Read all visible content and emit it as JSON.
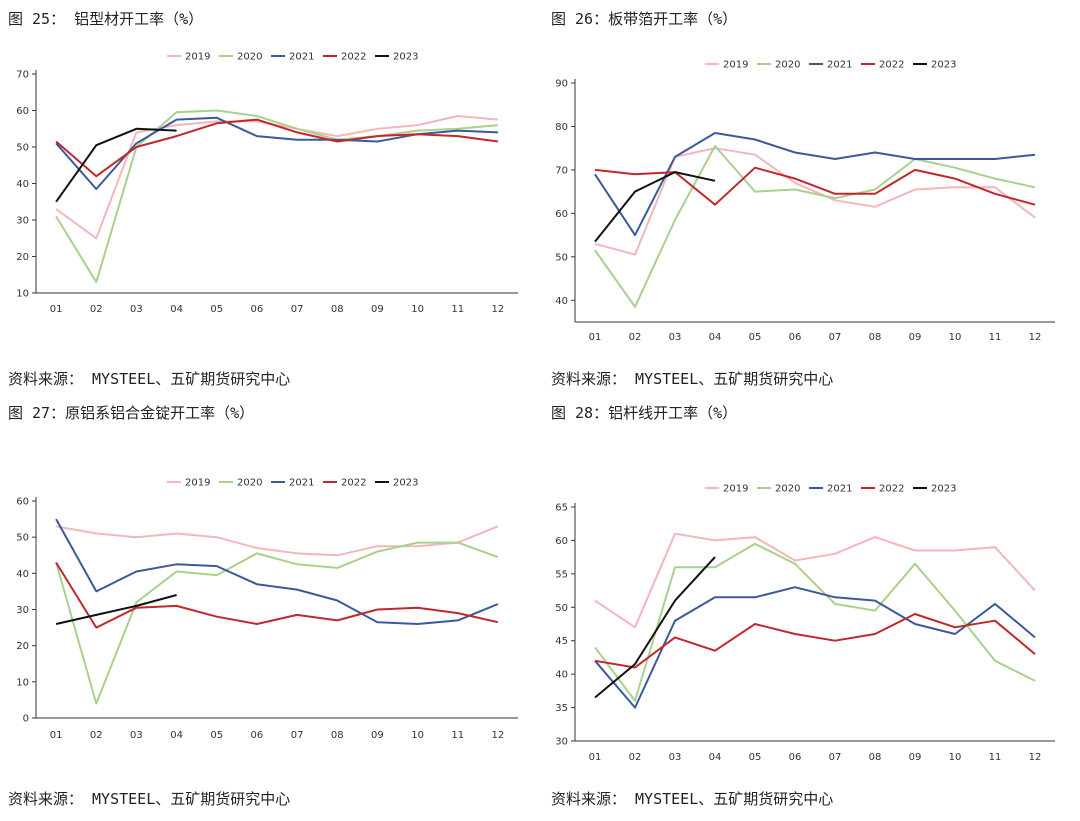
{
  "page": {
    "source_label": "资料来源： MYSTEEL、五矿期货研究中心"
  },
  "chart_data": [
    {
      "type": "line",
      "title": "图 25： 铝型材开工率（%）",
      "categories": [
        "01",
        "02",
        "03",
        "04",
        "05",
        "06",
        "07",
        "08",
        "09",
        "10",
        "11",
        "12"
      ],
      "ylim": [
        10,
        70
      ],
      "yticks": [
        10,
        20,
        30,
        40,
        50,
        60,
        70
      ],
      "legend": "top-center",
      "series": [
        {
          "name": "2019",
          "color": "#f4b6b8",
          "values": [
            33,
            25,
            54,
            56,
            57,
            57,
            55,
            53,
            55,
            56,
            58.5,
            57.5
          ]
        },
        {
          "name": "2020",
          "color": "#a9d18e",
          "values": [
            31,
            13,
            50,
            59.5,
            60,
            58.5,
            55,
            52,
            53,
            54.5,
            55,
            56
          ]
        },
        {
          "name": "2021",
          "color": "#3c5a9a",
          "values": [
            51,
            38.5,
            51,
            57.5,
            58,
            53,
            52,
            52,
            51.5,
            53.5,
            54.5,
            54
          ]
        },
        {
          "name": "2022",
          "color": "#c0282e",
          "values": [
            51.5,
            42,
            50,
            53,
            56.5,
            57.5,
            54,
            51.5,
            53,
            53.5,
            53,
            51.5
          ]
        },
        {
          "name": "2023",
          "color": "#111111",
          "values": [
            35,
            50.5,
            55,
            54.5,
            null,
            null,
            null,
            null,
            null,
            null,
            null,
            null
          ]
        }
      ]
    },
    {
      "type": "line",
      "title": "图 26：板带箔开工率（%）",
      "categories": [
        "01",
        "02",
        "03",
        "04",
        "05",
        "06",
        "07",
        "08",
        "09",
        "10",
        "11",
        "12"
      ],
      "ylim": [
        35,
        90
      ],
      "yticks": [
        40,
        50,
        60,
        70,
        80,
        90
      ],
      "legend": "top-center",
      "series": [
        {
          "name": "2019",
          "color": "#f4b6b8",
          "values": [
            53,
            50.5,
            73,
            75,
            73.5,
            67,
            63,
            61.5,
            65.5,
            66,
            66,
            59
          ]
        },
        {
          "name": "2020",
          "color": "#a9d18e",
          "values": [
            51.5,
            38.5,
            58.5,
            75.5,
            65,
            65.5,
            63.5,
            65.5,
            72.5,
            70.5,
            68,
            66
          ]
        },
        {
          "name": "2021",
          "color": "#3c5a9a",
          "values": [
            69,
            55,
            73,
            78.5,
            77,
            74,
            72.5,
            74,
            72.5,
            72.5,
            72.5,
            73.5
          ]
        },
        {
          "name": "2022",
          "color": "#c0282e",
          "values": [
            70,
            69,
            69.5,
            62,
            70.5,
            68,
            64.5,
            64.5,
            70,
            68,
            64.5,
            62
          ]
        },
        {
          "name": "2023",
          "color": "#111111",
          "values": [
            53.5,
            65,
            69.5,
            67.5,
            null,
            null,
            null,
            null,
            null,
            null,
            null,
            null
          ]
        }
      ]
    },
    {
      "type": "line",
      "title": "图 27：原铝系铝合金锭开工率（%）",
      "categories": [
        "01",
        "02",
        "03",
        "04",
        "05",
        "06",
        "07",
        "08",
        "09",
        "10",
        "11",
        "12"
      ],
      "ylim": [
        0,
        60
      ],
      "yticks": [
        0,
        10,
        20,
        30,
        40,
        50,
        60
      ],
      "legend": "top-center",
      "series": [
        {
          "name": "2019",
          "color": "#f4b6b8",
          "values": [
            53,
            51,
            50,
            51,
            50,
            47,
            45.5,
            45,
            47.5,
            47.5,
            48.5,
            53
          ]
        },
        {
          "name": "2020",
          "color": "#a9d18e",
          "values": [
            43,
            4,
            32,
            40.5,
            39.5,
            45.5,
            42.5,
            41.5,
            46,
            48.5,
            48.5,
            44.5
          ]
        },
        {
          "name": "2021",
          "color": "#3c5a9a",
          "values": [
            55,
            35,
            40.5,
            42.5,
            42,
            37,
            35.5,
            32.5,
            26.5,
            26,
            27,
            31.5
          ]
        },
        {
          "name": "2022",
          "color": "#c0282e",
          "values": [
            43,
            25,
            30.5,
            31,
            28,
            26,
            28.5,
            27,
            30,
            30.5,
            29,
            26.5
          ]
        },
        {
          "name": "2023",
          "color": "#111111",
          "values": [
            26,
            28.5,
            31,
            34,
            null,
            null,
            null,
            null,
            null,
            null,
            null,
            null
          ]
        }
      ]
    },
    {
      "type": "line",
      "title": "图 28：铝杆线开工率（%）",
      "categories": [
        "01",
        "02",
        "03",
        "04",
        "05",
        "06",
        "07",
        "08",
        "09",
        "10",
        "11",
        "12"
      ],
      "ylim": [
        30,
        65
      ],
      "yticks": [
        30,
        35,
        40,
        45,
        50,
        55,
        60,
        65
      ],
      "legend": "top-center",
      "series": [
        {
          "name": "2019",
          "color": "#f4b6b8",
          "values": [
            51,
            47,
            61,
            60,
            60.5,
            57,
            58,
            60.5,
            58.5,
            58.5,
            59,
            52.5
          ]
        },
        {
          "name": "2020",
          "color": "#a9d18e",
          "values": [
            44,
            36,
            56,
            56,
            59.5,
            56.5,
            50.5,
            49.5,
            56.5,
            49.5,
            42,
            39
          ]
        },
        {
          "name": "2021",
          "color": "#3c5a9a",
          "values": [
            42,
            35,
            48,
            51.5,
            51.5,
            53,
            51.5,
            51,
            47.5,
            46,
            50.5,
            45.5
          ]
        },
        {
          "name": "2022",
          "color": "#c0282e",
          "values": [
            42,
            41,
            45.5,
            43.5,
            47.5,
            46,
            45,
            46,
            49,
            47,
            48,
            43
          ]
        },
        {
          "name": "2023",
          "color": "#111111",
          "values": [
            36.5,
            41.5,
            51,
            57.5,
            null,
            null,
            null,
            null,
            null,
            null,
            null,
            null
          ]
        }
      ]
    }
  ]
}
